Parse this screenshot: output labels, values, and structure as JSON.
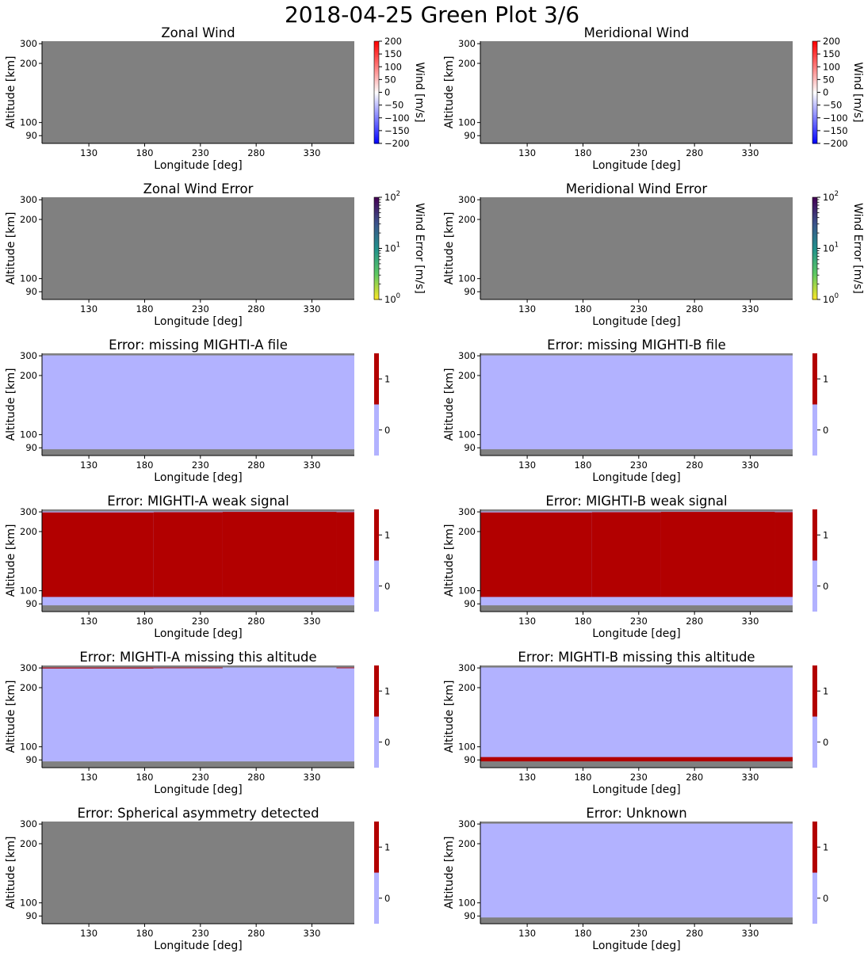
{
  "figure": {
    "title": "2018-04-25 Green Plot 3/6"
  },
  "colors": {
    "nodata": "#808080",
    "flag0": "#b2b2ff",
    "flag1": "#b20000"
  },
  "chart_data": [
    {
      "type": "heatmap",
      "title": "Zonal Wind",
      "xlabel": "Longitude [deg]",
      "ylabel": "Altitude [km]",
      "xlim": [
        88,
        368
      ],
      "ylim": [
        85,
        320
      ],
      "y_scale": "reciprocal",
      "xticks": [
        "130",
        "180",
        "230",
        "280",
        "330"
      ],
      "yticks": [
        "90",
        "100",
        "200",
        "300"
      ],
      "cells": [
        {
          "x": [
            88,
            368
          ],
          "y": [
            85,
            320
          ],
          "value": null
        }
      ],
      "colorbar": {
        "label": "Wind [m/s]",
        "scale": "linear",
        "colormap": "bwr",
        "range": [
          -200,
          200
        ],
        "ticks": [
          "200",
          "150",
          "100",
          "50",
          "0",
          "−50",
          "−100",
          "−150",
          "−200"
        ]
      }
    },
    {
      "type": "heatmap",
      "title": "Meridional Wind",
      "xlabel": "Longitude [deg]",
      "ylabel": "Altitude [km]",
      "xlim": [
        88,
        368
      ],
      "ylim": [
        85,
        320
      ],
      "y_scale": "reciprocal",
      "xticks": [
        "130",
        "180",
        "230",
        "280",
        "330"
      ],
      "yticks": [
        "90",
        "100",
        "200",
        "300"
      ],
      "cells": [
        {
          "x": [
            88,
            368
          ],
          "y": [
            85,
            320
          ],
          "value": null
        }
      ],
      "colorbar": {
        "label": "Wind [m/s]",
        "scale": "linear",
        "colormap": "bwr",
        "range": [
          -200,
          200
        ],
        "ticks": [
          "200",
          "150",
          "100",
          "50",
          "0",
          "−50",
          "−100",
          "−150",
          "−200"
        ]
      }
    },
    {
      "type": "heatmap",
      "title": "Zonal Wind Error",
      "xlabel": "Longitude [deg]",
      "ylabel": "Altitude [km]",
      "xlim": [
        88,
        368
      ],
      "ylim": [
        85,
        320
      ],
      "y_scale": "reciprocal",
      "xticks": [
        "130",
        "180",
        "230",
        "280",
        "330"
      ],
      "yticks": [
        "90",
        "100",
        "200",
        "300"
      ],
      "cells": [
        {
          "x": [
            88,
            368
          ],
          "y": [
            85,
            320
          ],
          "value": null
        }
      ],
      "colorbar": {
        "label": "Wind Error [m/s]",
        "scale": "log",
        "colormap": "viridis_r",
        "range": [
          1,
          100
        ],
        "ticks": [
          {
            "base": "10",
            "exp": "2"
          },
          {
            "base": "10",
            "exp": "1"
          },
          {
            "base": "10",
            "exp": "0"
          }
        ]
      }
    },
    {
      "type": "heatmap",
      "title": "Meridional Wind Error",
      "xlabel": "Longitude [deg]",
      "ylabel": "Altitude [km]",
      "xlim": [
        88,
        368
      ],
      "ylim": [
        85,
        320
      ],
      "y_scale": "reciprocal",
      "xticks": [
        "130",
        "180",
        "230",
        "280",
        "330"
      ],
      "yticks": [
        "90",
        "100",
        "200",
        "300"
      ],
      "cells": [
        {
          "x": [
            88,
            368
          ],
          "y": [
            85,
            320
          ],
          "value": null
        }
      ],
      "colorbar": {
        "label": "Wind Error [m/s]",
        "scale": "log",
        "colormap": "viridis_r",
        "range": [
          1,
          100
        ],
        "ticks": [
          {
            "base": "10",
            "exp": "2"
          },
          {
            "base": "10",
            "exp": "1"
          },
          {
            "base": "10",
            "exp": "0"
          }
        ]
      }
    },
    {
      "type": "heatmap",
      "title": "Error: missing MIGHTI-A file",
      "xlabel": "Longitude [deg]",
      "ylabel": "Altitude [km]",
      "xlim": [
        88,
        368
      ],
      "ylim": [
        85,
        320
      ],
      "y_scale": "reciprocal",
      "xticks": [
        "130",
        "180",
        "230",
        "280",
        "330"
      ],
      "yticks": [
        "90",
        "100",
        "200",
        "300"
      ],
      "cells": [
        {
          "x": [
            88,
            368
          ],
          "y": [
            85,
            320
          ],
          "value": null
        },
        {
          "x": [
            88,
            368
          ],
          "y": [
            89,
            303
          ],
          "value": 0
        }
      ],
      "colorbar": {
        "label": "",
        "scale": "binary",
        "range": [
          -0.5,
          1.5
        ],
        "ticks": [
          "1",
          "0"
        ]
      }
    },
    {
      "type": "heatmap",
      "title": "Error: missing MIGHTI-B file",
      "xlabel": "Longitude [deg]",
      "ylabel": "Altitude [km]",
      "xlim": [
        88,
        368
      ],
      "ylim": [
        85,
        320
      ],
      "y_scale": "reciprocal",
      "xticks": [
        "130",
        "180",
        "230",
        "280",
        "330"
      ],
      "yticks": [
        "90",
        "100",
        "200",
        "300"
      ],
      "cells": [
        {
          "x": [
            88,
            368
          ],
          "y": [
            85,
            320
          ],
          "value": null
        },
        {
          "x": [
            88,
            368
          ],
          "y": [
            89,
            303
          ],
          "value": 0
        }
      ],
      "colorbar": {
        "label": "",
        "scale": "binary",
        "range": [
          -0.5,
          1.5
        ],
        "ticks": [
          "1",
          "0"
        ]
      }
    },
    {
      "type": "heatmap",
      "title": "Error: MIGHTI-A weak signal",
      "xlabel": "Longitude [deg]",
      "ylabel": "Altitude [km]",
      "xlim": [
        88,
        368
      ],
      "ylim": [
        85,
        320
      ],
      "y_scale": "reciprocal",
      "xticks": [
        "130",
        "180",
        "230",
        "280",
        "330"
      ],
      "yticks": [
        "90",
        "100",
        "200",
        "300"
      ],
      "cells": [
        {
          "x": [
            88,
            368
          ],
          "y": [
            85,
            320
          ],
          "value": null
        },
        {
          "x": [
            88,
            368
          ],
          "y": [
            89,
            303
          ],
          "value": 0
        },
        {
          "x": [
            88,
            188
          ],
          "y": [
            95,
            296
          ],
          "value": 1
        },
        {
          "x": [
            188,
            250
          ],
          "y": [
            95,
            298
          ],
          "value": 1
        },
        {
          "x": [
            250,
            352
          ],
          "y": [
            95,
            300
          ],
          "value": 1
        },
        {
          "x": [
            352,
            368
          ],
          "y": [
            95,
            298
          ],
          "value": 1
        }
      ],
      "colorbar": {
        "label": "",
        "scale": "binary",
        "range": [
          -0.5,
          1.5
        ],
        "ticks": [
          "1",
          "0"
        ]
      }
    },
    {
      "type": "heatmap",
      "title": "Error: MIGHTI-B weak signal",
      "xlabel": "Longitude [deg]",
      "ylabel": "Altitude [km]",
      "xlim": [
        88,
        368
      ],
      "ylim": [
        85,
        320
      ],
      "y_scale": "reciprocal",
      "xticks": [
        "130",
        "180",
        "230",
        "280",
        "330"
      ],
      "yticks": [
        "90",
        "100",
        "200",
        "300"
      ],
      "cells": [
        {
          "x": [
            88,
            368
          ],
          "y": [
            85,
            320
          ],
          "value": null
        },
        {
          "x": [
            88,
            368
          ],
          "y": [
            89,
            303
          ],
          "value": 0
        },
        {
          "x": [
            88,
            188
          ],
          "y": [
            95,
            296
          ],
          "value": 1
        },
        {
          "x": [
            188,
            250
          ],
          "y": [
            95,
            298
          ],
          "value": 1
        },
        {
          "x": [
            250,
            352
          ],
          "y": [
            95,
            300
          ],
          "value": 1
        },
        {
          "x": [
            352,
            368
          ],
          "y": [
            95,
            298
          ],
          "value": 1
        }
      ],
      "colorbar": {
        "label": "",
        "scale": "binary",
        "range": [
          -0.5,
          1.5
        ],
        "ticks": [
          "1",
          "0"
        ]
      }
    },
    {
      "type": "heatmap",
      "title": "Error: MIGHTI-A missing this altitude",
      "xlabel": "Longitude [deg]",
      "ylabel": "Altitude [km]",
      "xlim": [
        88,
        368
      ],
      "ylim": [
        85,
        320
      ],
      "y_scale": "reciprocal",
      "xticks": [
        "130",
        "180",
        "230",
        "280",
        "330"
      ],
      "yticks": [
        "90",
        "100",
        "200",
        "300"
      ],
      "cells": [
        {
          "x": [
            88,
            368
          ],
          "y": [
            85,
            320
          ],
          "value": null
        },
        {
          "x": [
            88,
            368
          ],
          "y": [
            89,
            303
          ],
          "value": 0
        },
        {
          "x": [
            88,
            188
          ],
          "y": [
            296,
            303
          ],
          "value": 1
        },
        {
          "x": [
            188,
            250
          ],
          "y": [
            298,
            303
          ],
          "value": 1
        },
        {
          "x": [
            352,
            368
          ],
          "y": [
            298,
            303
          ],
          "value": 1
        }
      ],
      "colorbar": {
        "label": "",
        "scale": "binary",
        "range": [
          -0.5,
          1.5
        ],
        "ticks": [
          "1",
          "0"
        ]
      }
    },
    {
      "type": "heatmap",
      "title": "Error: MIGHTI-B missing this altitude",
      "xlabel": "Longitude [deg]",
      "ylabel": "Altitude [km]",
      "xlim": [
        88,
        368
      ],
      "ylim": [
        85,
        320
      ],
      "y_scale": "reciprocal",
      "xticks": [
        "130",
        "180",
        "230",
        "280",
        "330"
      ],
      "yticks": [
        "90",
        "100",
        "200",
        "300"
      ],
      "cells": [
        {
          "x": [
            88,
            368
          ],
          "y": [
            85,
            320
          ],
          "value": null
        },
        {
          "x": [
            88,
            368
          ],
          "y": [
            89,
            303
          ],
          "value": 0
        },
        {
          "x": [
            88,
            368
          ],
          "y": [
            89,
            92
          ],
          "value": 1
        }
      ],
      "colorbar": {
        "label": "",
        "scale": "binary",
        "range": [
          -0.5,
          1.5
        ],
        "ticks": [
          "1",
          "0"
        ]
      }
    },
    {
      "type": "heatmap",
      "title": "Error: Spherical asymmetry detected",
      "xlabel": "Longitude [deg]",
      "ylabel": "Altitude [km]",
      "xlim": [
        88,
        368
      ],
      "ylim": [
        85,
        320
      ],
      "y_scale": "reciprocal",
      "xticks": [
        "130",
        "180",
        "230",
        "280",
        "330"
      ],
      "yticks": [
        "90",
        "100",
        "200",
        "300"
      ],
      "cells": [
        {
          "x": [
            88,
            368
          ],
          "y": [
            85,
            320
          ],
          "value": null
        }
      ],
      "colorbar": {
        "label": "",
        "scale": "binary",
        "range": [
          -0.5,
          1.5
        ],
        "ticks": [
          "1",
          "0"
        ]
      }
    },
    {
      "type": "heatmap",
      "title": "Error: Unknown",
      "xlabel": "Longitude [deg]",
      "ylabel": "Altitude [km]",
      "xlim": [
        88,
        368
      ],
      "ylim": [
        85,
        320
      ],
      "y_scale": "reciprocal",
      "xticks": [
        "130",
        "180",
        "230",
        "280",
        "330"
      ],
      "yticks": [
        "90",
        "100",
        "200",
        "300"
      ],
      "cells": [
        {
          "x": [
            88,
            368
          ],
          "y": [
            85,
            320
          ],
          "value": null
        },
        {
          "x": [
            88,
            368
          ],
          "y": [
            89,
            303
          ],
          "value": 0
        }
      ],
      "colorbar": {
        "label": "",
        "scale": "binary",
        "range": [
          -0.5,
          1.5
        ],
        "ticks": [
          "1",
          "0"
        ]
      }
    }
  ]
}
